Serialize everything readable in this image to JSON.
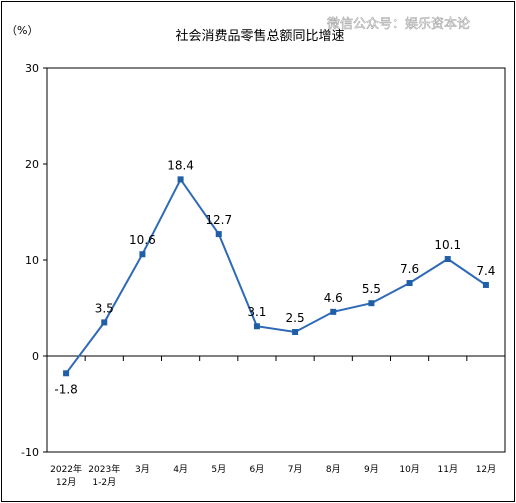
{
  "watermark": "微信公众号：娱乐资本论",
  "chart_data": {
    "type": "line",
    "title": "社会消费品零售总额同比增速",
    "unit_label": "（%）",
    "xlabel": "",
    "ylabel": "",
    "ylim": [
      -10,
      30
    ],
    "yticks": [
      30,
      20,
      10,
      0,
      -10
    ],
    "grid": false,
    "categories": [
      [
        "2022年",
        "12月"
      ],
      [
        "2023年",
        "1-2月"
      ],
      [
        "3月"
      ],
      [
        "4月"
      ],
      [
        "5月"
      ],
      [
        "6月"
      ],
      [
        "7月"
      ],
      [
        "8月"
      ],
      [
        "9月"
      ],
      [
        "10月"
      ],
      [
        "11月"
      ],
      [
        "12月"
      ]
    ],
    "values": [
      -1.8,
      3.5,
      10.6,
      18.4,
      12.7,
      3.1,
      2.5,
      4.6,
      5.5,
      7.6,
      10.1,
      7.4
    ],
    "data_labels": [
      "-1.8",
      "3.5",
      "10.6",
      "18.4",
      "12.7",
      "3.1",
      "2.5",
      "4.6",
      "5.5",
      "7.6",
      "10.1",
      "7.4"
    ],
    "colors": {
      "line": "#2f6ab7",
      "marker": "#1f5fa8",
      "axis": "#000000"
    }
  }
}
